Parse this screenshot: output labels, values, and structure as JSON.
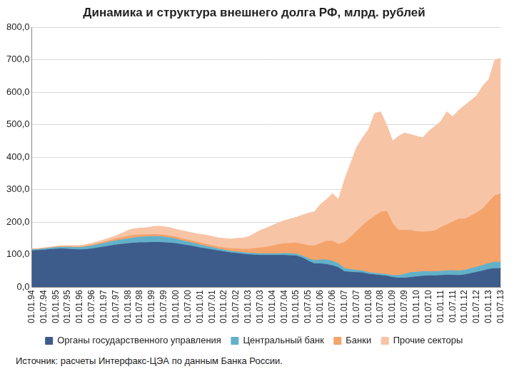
{
  "chart_data": {
    "type": "area",
    "title": "Динамика и структура внешнего долга РФ, млрд. рублей",
    "source": "Источник: расчеты Интерфакс-ЦЭА по данным Банка России.",
    "categories": [
      "01.01.94",
      null,
      "01.07.94",
      null,
      "01.01.95",
      null,
      "01.07.95",
      null,
      "01.01.96",
      null,
      "01.07.96",
      null,
      "01.01.97",
      null,
      "01.07.97",
      null,
      "01.01.98",
      null,
      "01.07.98",
      null,
      "01.01.99",
      null,
      "01.07.99",
      null,
      "01.01.00",
      null,
      "01.07.00",
      null,
      "01.01.01",
      null,
      "01.07.01",
      null,
      "01.01.02",
      null,
      "01.07.02",
      null,
      "01.01.03",
      null,
      "01.07.03",
      null,
      "01.01.04",
      null,
      "01.07.04",
      null,
      "01.01.05",
      null,
      "01.07.05",
      null,
      "01.01.06",
      null,
      "01.07.06",
      null,
      "01.01.07",
      null,
      "01.07.07",
      null,
      "01.01.08",
      null,
      "01.07.08",
      null,
      "01.01.09",
      null,
      "01.07.09",
      null,
      "01.01.10",
      null,
      "01.07.10",
      null,
      "01.01.11",
      null,
      "01.07.11",
      null,
      "01.01.12",
      null,
      "01.07.12",
      null,
      "01.01.13",
      null,
      "01.07.13"
    ],
    "series": [
      {
        "name": "Органы государственного управления",
        "color": "#3d5b8b",
        "values": [
          112,
          113,
          114,
          116,
          117,
          118,
          117,
          116,
          115,
          116,
          118,
          121,
          124,
          127,
          130,
          132,
          134,
          136,
          137,
          137,
          138,
          138,
          137,
          136,
          134,
          131,
          128,
          125,
          121,
          118,
          115,
          112,
          109,
          106,
          104,
          102,
          100,
          99,
          98,
          98,
          98,
          98,
          98,
          97,
          96,
          90,
          80,
          72,
          72,
          70,
          66,
          60,
          48,
          46,
          45,
          44,
          40,
          38,
          36,
          34,
          30,
          28,
          28,
          30,
          32,
          34,
          35,
          35,
          36,
          37,
          37,
          36,
          38,
          42,
          46,
          50,
          55,
          57,
          57
        ]
      },
      {
        "name": "Центральный банк",
        "color": "#62b1c9",
        "values": [
          3,
          3,
          4,
          4,
          5,
          5,
          6,
          6,
          7,
          8,
          9,
          10,
          11,
          12,
          13,
          14,
          15,
          16,
          17,
          18,
          18,
          18,
          17,
          16,
          14,
          12,
          11,
          10,
          9,
          8,
          7,
          6,
          5,
          5,
          5,
          5,
          5,
          5,
          5,
          5,
          5,
          5,
          6,
          6,
          6,
          6,
          8,
          10,
          12,
          14,
          14,
          12,
          10,
          8,
          7,
          6,
          5,
          5,
          5,
          5,
          6,
          8,
          12,
          15,
          14,
          14,
          13,
          13,
          13,
          13,
          14,
          14,
          14,
          15,
          16,
          17,
          18,
          20,
          20
        ]
      },
      {
        "name": "Банки",
        "color": "#f4a36b",
        "values": [
          1,
          1,
          1,
          1,
          2,
          2,
          2,
          2,
          2,
          3,
          3,
          3,
          4,
          5,
          6,
          7,
          8,
          8,
          7,
          6,
          6,
          6,
          6,
          6,
          6,
          6,
          6,
          6,
          6,
          6,
          6,
          6,
          7,
          8,
          9,
          10,
          12,
          15,
          18,
          20,
          24,
          28,
          30,
          32,
          34,
          36,
          40,
          45,
          50,
          58,
          62,
          60,
          80,
          100,
          120,
          140,
          160,
          175,
          190,
          195,
          160,
          140,
          135,
          130,
          125,
          122,
          123,
          125,
          135,
          142,
          150,
          160,
          158,
          162,
          168,
          175,
          190,
          205,
          210
        ]
      },
      {
        "name": "Прочие секторы",
        "color": "#f8c4a6",
        "values": [
          2,
          2,
          2,
          2,
          2,
          2,
          3,
          4,
          4,
          4,
          5,
          6,
          7,
          8,
          9,
          13,
          18,
          20,
          21,
          22,
          24,
          26,
          26,
          25,
          24,
          25,
          25,
          25,
          27,
          28,
          28,
          28,
          29,
          29,
          32,
          34,
          38,
          46,
          54,
          59,
          63,
          67,
          71,
          75,
          79,
          90,
          100,
          105,
          121,
          128,
          146,
          138,
          192,
          226,
          258,
          270,
          280,
          317,
          309,
          266,
          254,
          289,
          300,
          295,
          294,
          290,
          309,
          322,
          326,
          348,
          324,
          335,
          350,
          356,
          360,
          378,
          377,
          418,
          418
        ]
      }
    ],
    "ylim": [
      0,
      800
    ],
    "yticks": [
      {
        "value": 0,
        "label": "0,0"
      },
      {
        "value": 100,
        "label": "100,0"
      },
      {
        "value": 200,
        "label": "200,0"
      },
      {
        "value": 300,
        "label": "300,0"
      },
      {
        "value": 400,
        "label": "400,0"
      },
      {
        "value": 500,
        "label": "500,0"
      },
      {
        "value": 600,
        "label": "600,0"
      },
      {
        "value": 700,
        "label": "700,0"
      },
      {
        "value": 800,
        "label": "800,0"
      }
    ],
    "stacked": true,
    "grid": true,
    "legend": "bottom"
  }
}
